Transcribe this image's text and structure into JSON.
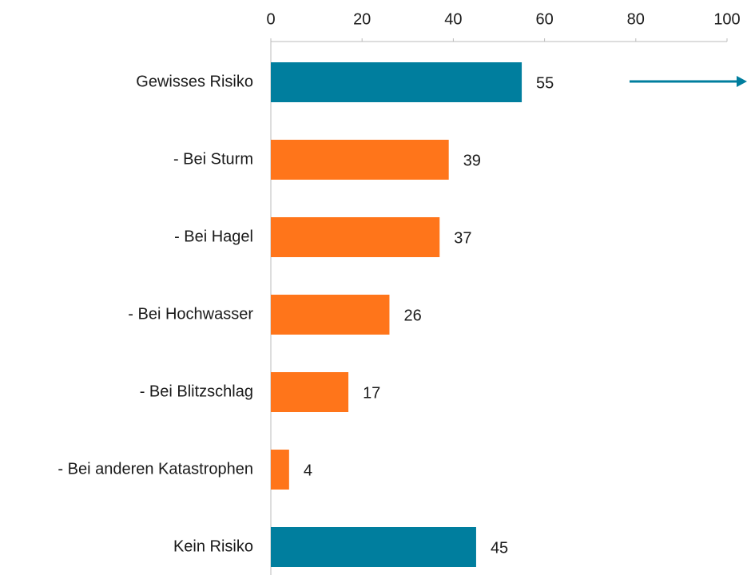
{
  "chart_data": {
    "type": "hbar",
    "categories": [
      "Gewisses Risiko",
      "- Bei Sturm",
      "- Bei Hagel",
      "- Bei Hochwasser",
      "- Bei Blitzschlag",
      "- Bei anderen Katastrophen",
      "Kein Risiko"
    ],
    "values": [
      55,
      39,
      37,
      26,
      17,
      4,
      45
    ],
    "colors": [
      "#007e9e",
      "#ff751a",
      "#ff751a",
      "#ff751a",
      "#ff751a",
      "#ff751a",
      "#007e9e"
    ],
    "xlim": [
      0,
      100
    ],
    "xticks": [
      0,
      20,
      40,
      60,
      80,
      100
    ],
    "grid": false
  }
}
